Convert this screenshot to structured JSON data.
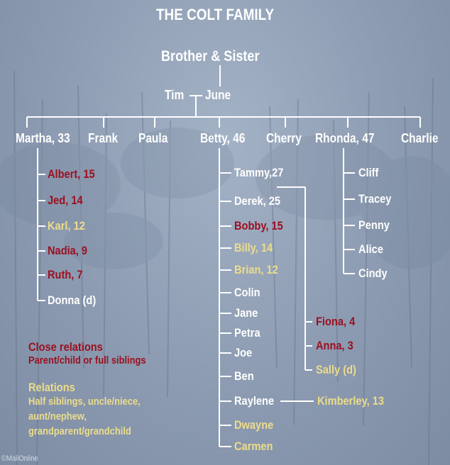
{
  "title": "THE COLT FAMILY",
  "root": "Brother & Sister",
  "couple": {
    "left": "Tim",
    "right": "June"
  },
  "children": [
    "Martha, 33",
    "Frank",
    "Paula",
    "Betty, 46",
    "Cherry",
    "Rhonda, 47",
    "Charlie"
  ],
  "martha_children": [
    {
      "label": "Albert, 15",
      "relation": "close"
    },
    {
      "label": "Jed, 14",
      "relation": "close"
    },
    {
      "label": "Karl, 12",
      "relation": "relation"
    },
    {
      "label": "Nadia, 9",
      "relation": "close"
    },
    {
      "label": "Ruth, 7",
      "relation": "close"
    },
    {
      "label": "Donna (d)",
      "relation": "none"
    }
  ],
  "betty_children": [
    {
      "label": "Tammy,27",
      "relation": "none"
    },
    {
      "label": "Derek, 25",
      "relation": "none"
    },
    {
      "label": "Bobby, 15",
      "relation": "close"
    },
    {
      "label": "Billy, 14",
      "relation": "relation"
    },
    {
      "label": "Brian, 12",
      "relation": "relation"
    },
    {
      "label": "Colin",
      "relation": "none"
    },
    {
      "label": "Jane",
      "relation": "none"
    },
    {
      "label": "Petra",
      "relation": "none"
    },
    {
      "label": "Joe",
      "relation": "none"
    },
    {
      "label": "Ben",
      "relation": "none"
    },
    {
      "label": "Raylene",
      "relation": "none"
    },
    {
      "label": "Dwayne",
      "relation": "relation"
    },
    {
      "label": "Carmen",
      "relation": "relation"
    }
  ],
  "rhonda_children": [
    {
      "label": "Cliff",
      "relation": "none"
    },
    {
      "label": "Tracey",
      "relation": "none"
    },
    {
      "label": "Penny",
      "relation": "none"
    },
    {
      "label": "Alice",
      "relation": "none"
    },
    {
      "label": "Cindy",
      "relation": "none"
    }
  ],
  "tammy_children": [
    {
      "label": "Fiona, 4",
      "relation": "close"
    },
    {
      "label": "Anna, 3",
      "relation": "close"
    },
    {
      "label": "Sally (d)",
      "relation": "relation"
    }
  ],
  "raylene_child": {
    "label": "Kimberley, 13",
    "relation": "relation"
  },
  "legend": {
    "close_title": "Close relations",
    "close_desc": "Parent/child or full siblings",
    "rel_title": "Relations",
    "rel_desc": [
      "Half siblings, uncle/niece,",
      "aunt/nephew,",
      "grandparent/grandchild"
    ]
  },
  "colors": {
    "close": "#9b1020",
    "relation": "#ecdc8a",
    "none": "#ffffff",
    "background": "#8c9bb1"
  },
  "watermark": "©MailOnline"
}
